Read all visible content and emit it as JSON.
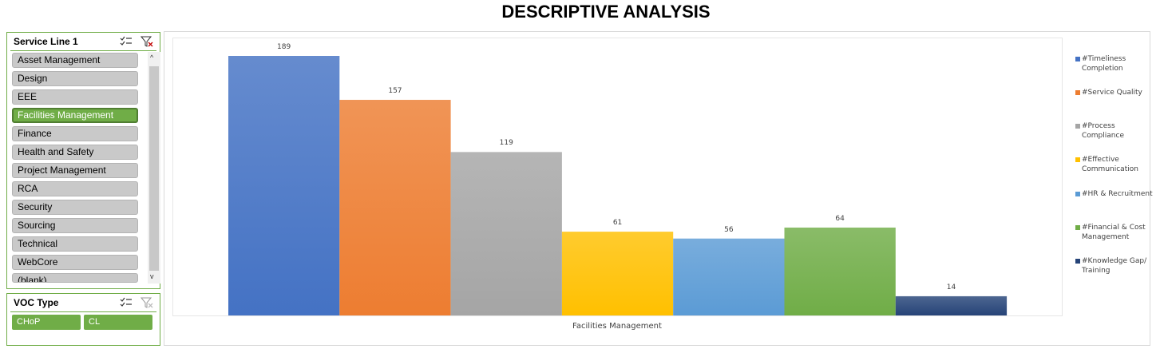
{
  "title": "DESCRIPTIVE ANALYSIS",
  "slicer_service": {
    "header": "Service Line 1",
    "items": [
      {
        "label": "Asset Management",
        "selected": false
      },
      {
        "label": "Design",
        "selected": false
      },
      {
        "label": "EEE",
        "selected": false
      },
      {
        "label": "Facilities Management",
        "selected": true
      },
      {
        "label": "Finance",
        "selected": false
      },
      {
        "label": "Health and Safety",
        "selected": false
      },
      {
        "label": "Project Management",
        "selected": false
      },
      {
        "label": "RCA",
        "selected": false
      },
      {
        "label": "Security",
        "selected": false
      },
      {
        "label": "Sourcing",
        "selected": false
      },
      {
        "label": "Technical",
        "selected": false
      },
      {
        "label": "WebCore",
        "selected": false
      },
      {
        "label": "(blank)",
        "selected": false
      }
    ],
    "scroll_up": "^",
    "scroll_down": "v",
    "icons": [
      "multi-select-icon",
      "clear-filter-icon"
    ]
  },
  "slicer_voc": {
    "header": "VOC Type",
    "items": [
      {
        "label": "CHoP",
        "selected": true
      },
      {
        "label": "CL",
        "selected": true
      }
    ],
    "icons": [
      "multi-select-icon",
      "clear-filter-icon"
    ]
  },
  "chart_data": {
    "type": "bar",
    "categories": [
      "Facilities Management"
    ],
    "series": [
      {
        "name": "#Timeliness Completion",
        "values": [
          189
        ],
        "color": "#4472c4"
      },
      {
        "name": "#Service Quality",
        "values": [
          157
        ],
        "color": "#ed7d31"
      },
      {
        "name": "#Process Compliance",
        "values": [
          119
        ],
        "color": "#a5a5a5"
      },
      {
        "name": "#Effective Communication",
        "values": [
          61
        ],
        "color": "#ffc000"
      },
      {
        "name": "#HR & Recruitment",
        "values": [
          56
        ],
        "color": "#5b9bd5"
      },
      {
        "name": "#Financial & Cost Management",
        "values": [
          64
        ],
        "color": "#70ad47"
      },
      {
        "name": "#Knowledge Gap/ Training",
        "values": [
          14
        ],
        "color": "#264478"
      }
    ],
    "title": "",
    "xlabel": "",
    "ylabel": "",
    "ylim": [
      0,
      189
    ],
    "grid": false,
    "legend": "right",
    "data_labels": true
  },
  "legend_lines": [
    [
      "#Timeliness",
      "Completion"
    ],
    [
      "#Service Quality"
    ],
    [
      "#Process",
      "Compliance"
    ],
    [
      "#Effective",
      "Communication"
    ],
    [
      "#HR & Recruitment"
    ],
    [
      "#Financial & Cost",
      "Management"
    ],
    [
      "#Knowledge Gap/",
      "Training"
    ]
  ]
}
